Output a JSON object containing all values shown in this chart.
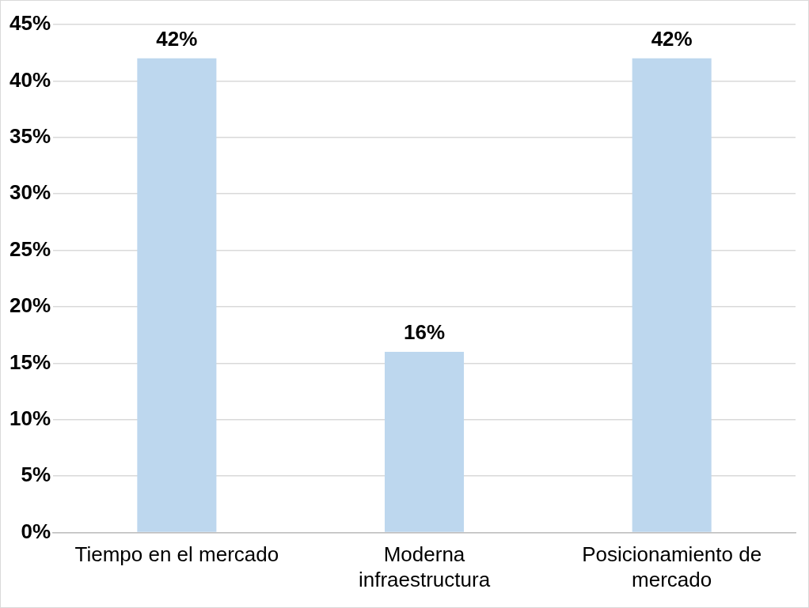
{
  "chart_data": {
    "type": "bar",
    "categories": [
      "Tiempo en el mercado",
      "Moderna infraestructura",
      "Posicionamiento de mercado"
    ],
    "values": [
      42,
      16,
      42
    ],
    "color": "#bdd7ee",
    "value_labels": [
      "42%",
      "16%",
      "42%"
    ],
    "ylim": [
      0,
      45
    ],
    "yticks": [
      {
        "value": 0,
        "label": "0%"
      },
      {
        "value": 5,
        "label": "5%"
      },
      {
        "value": 10,
        "label": "10%"
      },
      {
        "value": 15,
        "label": "15%"
      },
      {
        "value": 20,
        "label": "20%"
      },
      {
        "value": 25,
        "label": "25%"
      },
      {
        "value": 30,
        "label": "30%"
      },
      {
        "value": 35,
        "label": "35%"
      },
      {
        "value": 40,
        "label": "40%"
      },
      {
        "value": 45,
        "label": "45%"
      }
    ],
    "grid": "y",
    "legend": false
  }
}
